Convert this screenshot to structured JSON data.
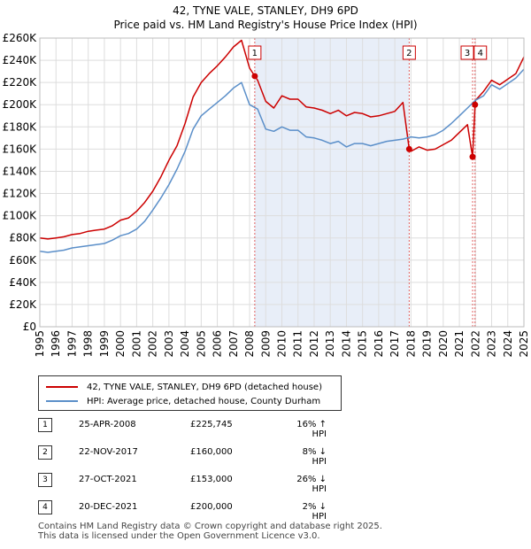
{
  "title_line1": "42, TYNE VALE, STANLEY, DH9 6PD",
  "title_line2": "Price paid vs. HM Land Registry's House Price Index (HPI)",
  "colors": {
    "price_line": "#cc0000",
    "hpi_line": "#5b8fc9",
    "shade": "#e8eef8",
    "grid": "#dddddd",
    "marker_line": "#e06060"
  },
  "legend": {
    "price": "42, TYNE VALE, STANLEY, DH9 6PD (detached house)",
    "hpi": "HPI: Average price, detached house, County Durham"
  },
  "transactions": [
    {
      "num": "1",
      "date": "25-APR-2008",
      "price": "£225,745",
      "hpi": "16% ↑ HPI"
    },
    {
      "num": "2",
      "date": "22-NOV-2017",
      "price": "£160,000",
      "hpi": "8% ↓ HPI"
    },
    {
      "num": "3",
      "date": "27-OCT-2021",
      "price": "£153,000",
      "hpi": "26% ↓ HPI"
    },
    {
      "num": "4",
      "date": "20-DEC-2021",
      "price": "£200,000",
      "hpi": "2% ↓ HPI"
    }
  ],
  "footer_line1": "Contains HM Land Registry data © Crown copyright and database right 2025.",
  "footer_line2": "This data is licensed under the Open Government Licence v3.0.",
  "chart_data": {
    "type": "line",
    "title": "42, TYNE VALE, STANLEY, DH9 6PD — Price paid vs. HM Land Registry's House Price Index (HPI)",
    "xlabel": "",
    "ylabel": "",
    "xlim": [
      1995,
      2025
    ],
    "ylim": [
      0,
      260000
    ],
    "x_ticks": [
      "1995",
      "1996",
      "1997",
      "1998",
      "1999",
      "2000",
      "2001",
      "2002",
      "2003",
      "2004",
      "2005",
      "2006",
      "2007",
      "2008",
      "2009",
      "2010",
      "2011",
      "2012",
      "2013",
      "2014",
      "2015",
      "2016",
      "2017",
      "2018",
      "2019",
      "2020",
      "2021",
      "2022",
      "2023",
      "2024",
      "2025"
    ],
    "y_ticks": [
      {
        "value": 0,
        "label": "£0"
      },
      {
        "value": 20000,
        "label": "£20K"
      },
      {
        "value": 40000,
        "label": "£40K"
      },
      {
        "value": 60000,
        "label": "£60K"
      },
      {
        "value": 80000,
        "label": "£80K"
      },
      {
        "value": 100000,
        "label": "£100K"
      },
      {
        "value": 120000,
        "label": "£120K"
      },
      {
        "value": 140000,
        "label": "£140K"
      },
      {
        "value": 160000,
        "label": "£160K"
      },
      {
        "value": 180000,
        "label": "£180K"
      },
      {
        "value": 200000,
        "label": "£200K"
      },
      {
        "value": 220000,
        "label": "£220K"
      },
      {
        "value": 240000,
        "label": "£240K"
      },
      {
        "value": 260000,
        "label": "£260K"
      }
    ],
    "grid": true,
    "shaded_range": [
      2008.32,
      2017.89
    ],
    "series": [
      {
        "name": "42, TYNE VALE, STANLEY, DH9 6PD (detached house)",
        "x": [
          1995,
          1995.5,
          1996,
          1996.5,
          1997,
          1997.5,
          1998,
          1998.5,
          1999,
          1999.5,
          2000,
          2000.5,
          2001,
          2001.5,
          2002,
          2002.5,
          2003,
          2003.5,
          2004,
          2004.5,
          2005,
          2005.5,
          2006,
          2006.5,
          2007,
          2007.5,
          2008,
          2008.32,
          2008.5,
          2009,
          2009.5,
          2010,
          2010.5,
          2011,
          2011.5,
          2012,
          2012.5,
          2013,
          2013.5,
          2014,
          2014.5,
          2015,
          2015.5,
          2016,
          2016.5,
          2017,
          2017.5,
          2017.89,
          2018,
          2018.5,
          2019,
          2019.5,
          2020,
          2020.5,
          2021,
          2021.5,
          2021.82,
          2021.97,
          2022,
          2022.5,
          2023,
          2023.5,
          2024,
          2024.5,
          2025
        ],
        "values": [
          80000,
          79000,
          80000,
          81000,
          83000,
          84000,
          86000,
          87000,
          88000,
          91000,
          96000,
          98000,
          104000,
          112000,
          122000,
          135000,
          150000,
          163000,
          183000,
          207000,
          220000,
          228000,
          235000,
          243000,
          252000,
          258000,
          233000,
          225745,
          222000,
          203000,
          197000,
          208000,
          205000,
          205000,
          198000,
          197000,
          195000,
          192000,
          195000,
          190000,
          193000,
          192000,
          189000,
          190000,
          192000,
          194000,
          202000,
          160000,
          158000,
          162000,
          159000,
          160000,
          164000,
          168000,
          175000,
          182000,
          153000,
          200000,
          204000,
          212000,
          222000,
          218000,
          223000,
          228000,
          243000
        ]
      },
      {
        "name": "HPI: Average price, detached house, County Durham",
        "x": [
          1995,
          1995.5,
          1996,
          1996.5,
          1997,
          1997.5,
          1998,
          1998.5,
          1999,
          1999.5,
          2000,
          2000.5,
          2001,
          2001.5,
          2002,
          2002.5,
          2003,
          2003.5,
          2004,
          2004.5,
          2005,
          2005.5,
          2006,
          2006.5,
          2007,
          2007.5,
          2008,
          2008.5,
          2009,
          2009.5,
          2010,
          2010.5,
          2011,
          2011.5,
          2012,
          2012.5,
          2013,
          2013.5,
          2014,
          2014.5,
          2015,
          2015.5,
          2016,
          2016.5,
          2017,
          2017.5,
          2018,
          2018.5,
          2019,
          2019.5,
          2020,
          2020.5,
          2021,
          2021.5,
          2022,
          2022.5,
          2023,
          2023.5,
          2024,
          2024.5,
          2025
        ],
        "values": [
          68000,
          67000,
          68000,
          69000,
          71000,
          72000,
          73000,
          74000,
          75000,
          78000,
          82000,
          84000,
          88000,
          95000,
          105000,
          116000,
          128000,
          142000,
          158000,
          178000,
          190000,
          196000,
          202000,
          208000,
          215000,
          220000,
          200000,
          196000,
          178000,
          176000,
          180000,
          177000,
          177000,
          171000,
          170000,
          168000,
          165000,
          167000,
          162000,
          165000,
          165000,
          163000,
          165000,
          167000,
          168000,
          169000,
          171000,
          170000,
          171000,
          173000,
          177000,
          183000,
          190000,
          197000,
          204000,
          208000,
          218000,
          214000,
          219000,
          224000,
          232000
        ]
      }
    ],
    "markers": [
      {
        "label": "1",
        "x": 2008.32,
        "y": 225745
      },
      {
        "label": "2",
        "x": 2017.89,
        "y": 160000
      },
      {
        "label": "3",
        "x": 2021.82,
        "y": 153000
      },
      {
        "label": "4",
        "x": 2021.97,
        "y": 200000
      }
    ]
  }
}
